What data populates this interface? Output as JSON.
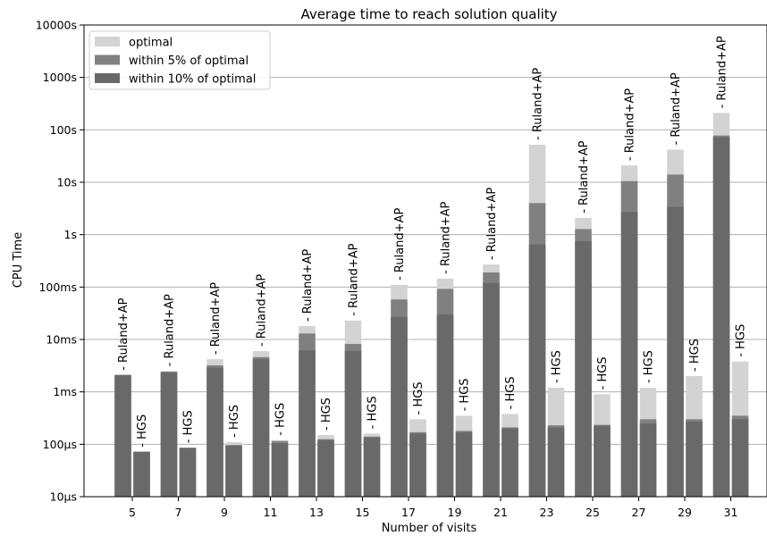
{
  "chart_data": {
    "type": "bar",
    "title": "Average time to reach solution quality",
    "xlabel": "Number of visits",
    "ylabel": "CPU Time",
    "y_scale": "log",
    "ylim_seconds": [
      1e-05,
      10000
    ],
    "y_ticks": [
      {
        "value": 1e-05,
        "label": "10µs"
      },
      {
        "value": 0.0001,
        "label": "100µs"
      },
      {
        "value": 0.001,
        "label": "1ms"
      },
      {
        "value": 0.01,
        "label": "10ms"
      },
      {
        "value": 0.1,
        "label": "100ms"
      },
      {
        "value": 1,
        "label": "1s"
      },
      {
        "value": 10,
        "label": "10s"
      },
      {
        "value": 100,
        "label": "100s"
      },
      {
        "value": 1000,
        "label": "1000s"
      },
      {
        "value": 10000,
        "label": "10000s"
      }
    ],
    "grid": "horizontal",
    "legend_position": "top-left",
    "categories": [
      "5",
      "7",
      "9",
      "11",
      "13",
      "15",
      "17",
      "19",
      "21",
      "23",
      "25",
      "27",
      "29",
      "31"
    ],
    "methods": [
      "- Ruland+AP",
      "- HGS"
    ],
    "series": [
      {
        "name": "optimal",
        "color": "#d3d3d3",
        "ruland_ap": [
          0.0021,
          0.0025,
          0.0042,
          0.006,
          0.018,
          0.023,
          0.11,
          0.145,
          0.27,
          52,
          2.1,
          21,
          42,
          210
        ],
        "hgs": [
          7.2e-05,
          8.6e-05,
          0.00011,
          0.00012,
          0.00015,
          0.00016,
          0.0003,
          0.00035,
          0.00038,
          0.0012,
          0.0009,
          0.0012,
          0.002,
          0.0038
        ]
      },
      {
        "name": "within 5% of optimal",
        "color": "#808080",
        "ruland_ap": [
          0.0021,
          0.0024,
          0.0032,
          0.0046,
          0.013,
          0.0082,
          0.058,
          0.092,
          0.19,
          4,
          1.28,
          10.5,
          14,
          78
        ],
        "hgs": [
          7.2e-05,
          8.6e-05,
          9.7e-05,
          0.000115,
          0.000125,
          0.00014,
          0.00017,
          0.00018,
          0.00021,
          0.00023,
          0.000235,
          0.0003,
          0.0003,
          0.00035
        ]
      },
      {
        "name": "within 10% of optimal",
        "color": "#696969",
        "ruland_ap": [
          0.0021,
          0.0024,
          0.0029,
          0.0042,
          0.0062,
          0.006,
          0.027,
          0.03,
          0.12,
          0.65,
          0.75,
          2.7,
          3.4,
          72
        ],
        "hgs": [
          7.2e-05,
          8.5e-05,
          9.3e-05,
          0.000105,
          0.00012,
          0.000135,
          0.00016,
          0.00017,
          0.0002,
          0.00021,
          0.000225,
          0.00025,
          0.00027,
          0.0003
        ]
      }
    ]
  }
}
